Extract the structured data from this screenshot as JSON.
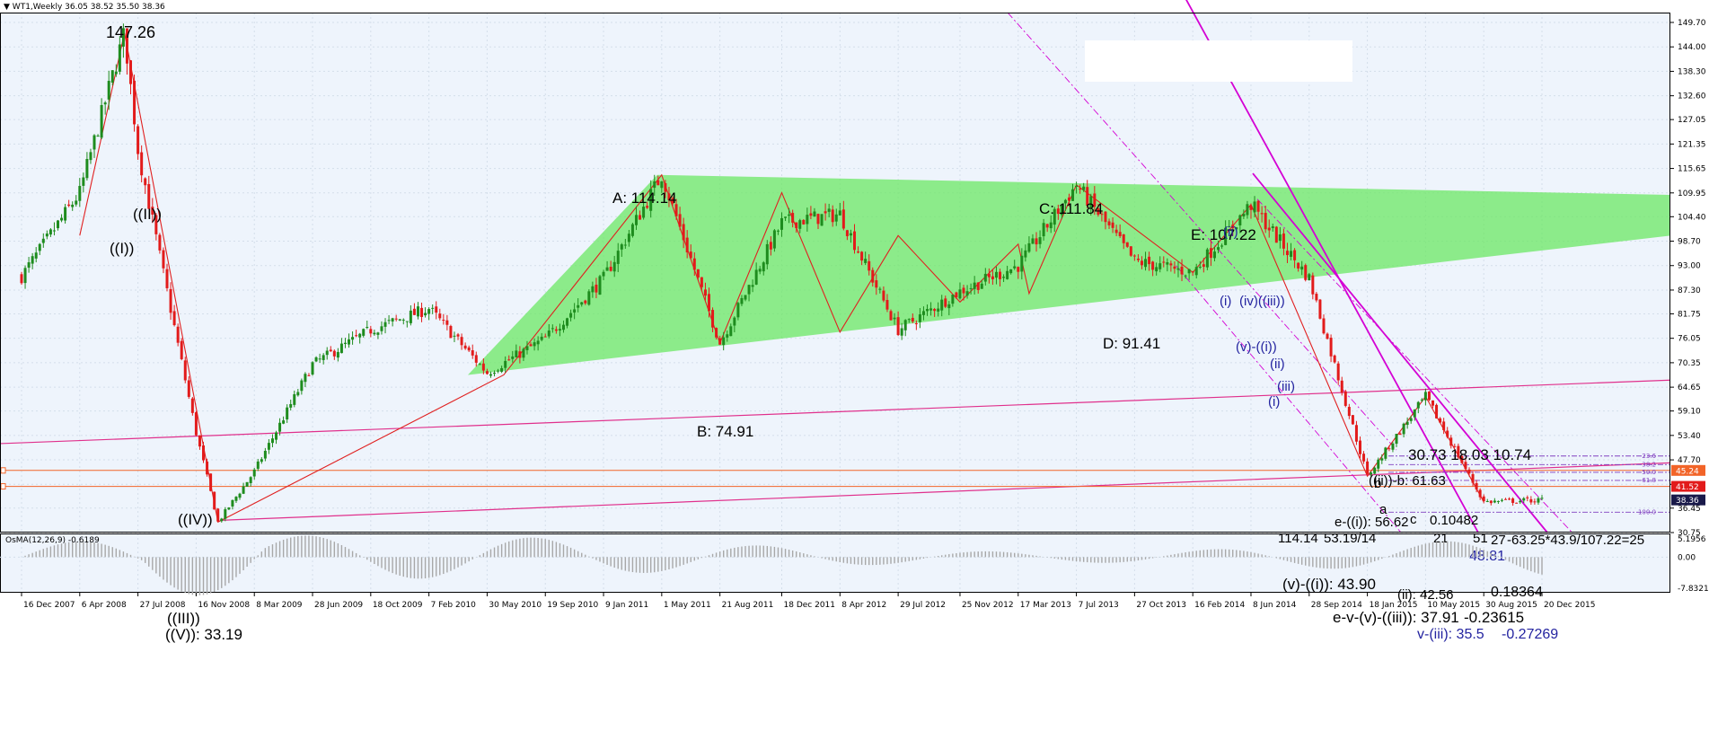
{
  "header": {
    "symbol": "WT1,Weekly",
    "ohlc": "36.05 38.52 35.50 38.36",
    "indicator": "OsMA(12,26,9) -0.6189"
  },
  "colors": {
    "background": "#EEF4FC",
    "grid": "#D4DEEA",
    "bull": "#1E8C1E",
    "bear": "#E21B1B",
    "triangle": "#66E85E",
    "zigzag": "#E02020",
    "channel": "#E0308C",
    "magenta": "#D400D4",
    "hline": "#F26428",
    "wave_blue": "#2424A0",
    "histogram": "#A8A8A8"
  },
  "chart_data": [
    {
      "type": "candlestick",
      "title": "WT1,Weekly",
      "ohlc_last": {
        "open": 36.05,
        "high": 38.52,
        "low": 35.5,
        "close": 38.36
      },
      "ylim": [
        30.75,
        152.0
      ],
      "y_ticks": [
        "149.70",
        "144.00",
        "138.30",
        "132.60",
        "127.05",
        "121.35",
        "115.65",
        "109.95",
        "104.40",
        "98.70",
        "93.00",
        "87.30",
        "81.75",
        "76.05",
        "70.35",
        "64.65",
        "59.10",
        "53.40",
        "47.70",
        "42.00",
        "36.45",
        "30.75"
      ],
      "x_ticks": [
        "16 Dec 2007",
        "6 Apr 2008",
        "27 Jul 2008",
        "16 Nov 2008",
        "8 Mar 2009",
        "28 Jun 2009",
        "18 Oct 2009",
        "7 Feb 2010",
        "30 May 2010",
        "19 Sep 2010",
        "9 Jan 2011",
        "1 May 2011",
        "21 Aug 2011",
        "18 Dec 2011",
        "8 Apr 2012",
        "29 Jul 2012",
        "25 Nov 2012",
        "17 Mar 2013",
        "7 Jul 2013",
        "27 Oct 2013",
        "16 Feb 2014",
        "8 Jun 2014",
        "28 Sep 2014",
        "18 Jan 2015",
        "10 May 2015",
        "30 Aug 2015",
        "20 Dec 2015"
      ],
      "price_path": [
        [
          "16 Dec 2007",
          90.5
        ],
        [
          "6 Apr 2008",
          110.0
        ],
        [
          "27 Jul 2008",
          120.0
        ],
        [
          "1 Jul 2008",
          147.26
        ],
        [
          "16 Nov 2008",
          54.0
        ],
        [
          "28 Dec 2008",
          33.19
        ],
        [
          "8 Mar 2009",
          45.0
        ],
        [
          "28 Jun 2009",
          70.0
        ],
        [
          "18 Oct 2009",
          78.0
        ],
        [
          "7 Feb 2010",
          83.0
        ],
        [
          "30 May 2010",
          68.0
        ],
        [
          "19 Sep 2010",
          76.0
        ],
        [
          "9 Jan 2011",
          90.0
        ],
        [
          "1 May 2011",
          114.14
        ],
        [
          "21 Aug 2011",
          74.91
        ],
        [
          "18 Dec 2011",
          103.0
        ],
        [
          "8 Apr 2012",
          105.0
        ],
        [
          "29 Jul 2012",
          78.0
        ],
        [
          "25 Nov 2012",
          87.0
        ],
        [
          "17 Mar 2013",
          93.0
        ],
        [
          "7 Jul 2013",
          111.84
        ],
        [
          "27 Oct 2013",
          94.0
        ],
        [
          "16 Feb 2014",
          91.41
        ],
        [
          "8 Jun 2014",
          107.22
        ],
        [
          "28 Sep 2014",
          90.0
        ],
        [
          "18 Jan 2015",
          43.9
        ],
        [
          "10 May 2015",
          62.5
        ],
        [
          "30 Aug 2015",
          37.91
        ],
        [
          "20 Dec 2015",
          38.36
        ]
      ],
      "current_price_labels": [
        "45.24",
        "41.52",
        "38.36"
      ],
      "fib_levels": [
        "23.6",
        "38.2",
        "50.0",
        "61.8",
        "100.0"
      ],
      "annotations": {
        "big_high": "147.26",
        "big_low": "((V)): 33.19",
        "w_I": "((I))",
        "w_II": "((II))",
        "w_III": "((III))",
        "w_IV": "((IV))",
        "A": "A: 114.14",
        "B": "B: 74.91",
        "C": "C: 111.84",
        "D": "D: 91.41",
        "E": "E: 107.22",
        "iv_low": "(v)-((i)): 43.90",
        "row_14_i": "114.14",
        "row_14_ii": "53.19/14",
        "ratio_top": "30.73  18.03  10.74",
        "ab_high": "((ii))-b: 61.63",
        "lbl_b": "b",
        "lbl_a": "a",
        "lbl_c": "c",
        "e_level": "e-((i)): 56.62",
        "ratio_0104": "0.10482",
        "ratio_long": "-63.25*43.9/107.22=25",
        "lbl_21": "21",
        "lbl_51": "51",
        "lbl_27": "27",
        "val_4881": "48.81",
        "val_18364": "0.18364",
        "lbl_ii": "(ii): 42.56",
        "e_v_low": "e-v-(v)-((iii)): 37.91",
        "ratio_23615": "-0.23615",
        "v_iii": "v-(iii): 35.5",
        "ratio_27269": "-0.27269",
        "blue_ii": "(ii)",
        "blue_i": "(i)",
        "blue_iv": "(iv)((iii))",
        "blue_v": "(v)-((i))",
        "wave_i1": "(i)",
        "wave_ii1": "(ii)",
        "wave_iii1": "(iii)"
      }
    },
    {
      "type": "bar",
      "title": "OsMA(12,26,9) -0.6189",
      "ylim": [
        -7.8321,
        5.1956
      ],
      "y_ticks": [
        "5.1956",
        "0.00",
        "-7.8321"
      ],
      "last_value": -0.6189
    }
  ]
}
